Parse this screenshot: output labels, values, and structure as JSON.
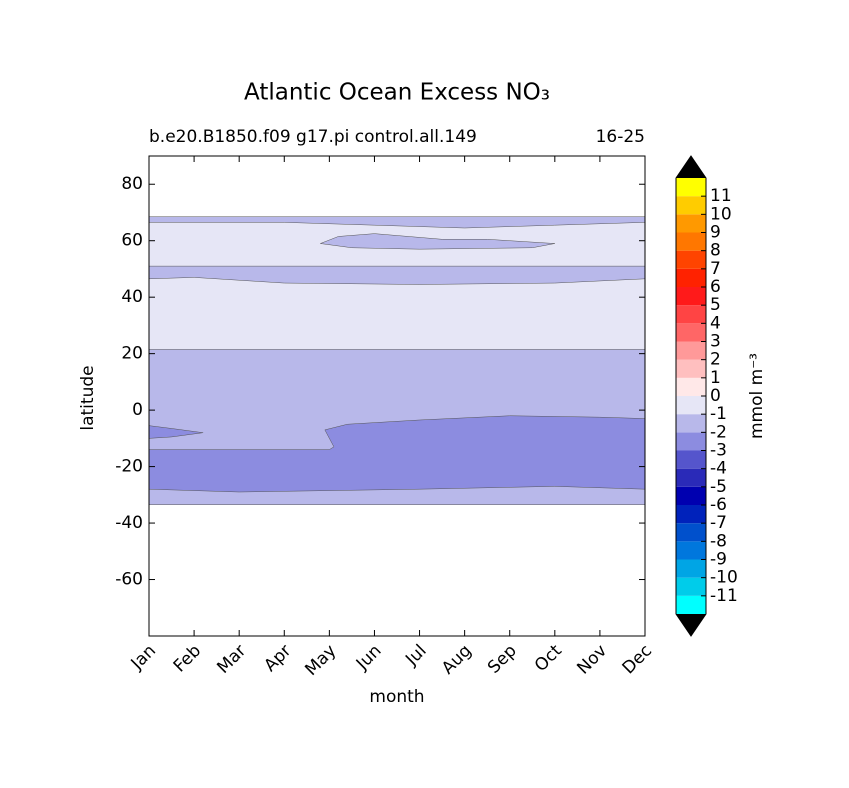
{
  "chart_data": {
    "type": "contour",
    "title": "Atlantic Ocean Excess NO₃",
    "subtitle_left": "b.e20.B1850.f09 g17.pi control.all.149",
    "subtitle_right": "16-25",
    "xlabel": "month",
    "ylabel": "latitude",
    "xlim": [
      0,
      11
    ],
    "xticks": [
      {
        "value": 0,
        "label": "Jan"
      },
      {
        "value": 1,
        "label": "Feb"
      },
      {
        "value": 2,
        "label": "Mar"
      },
      {
        "value": 3,
        "label": "Apr"
      },
      {
        "value": 4,
        "label": "May"
      },
      {
        "value": 5,
        "label": "Jun"
      },
      {
        "value": 6,
        "label": "Jul"
      },
      {
        "value": 7,
        "label": "Aug"
      },
      {
        "value": 8,
        "label": "Sep"
      },
      {
        "value": 9,
        "label": "Oct"
      },
      {
        "value": 10,
        "label": "Nov"
      },
      {
        "value": 11,
        "label": "Dec"
      }
    ],
    "ylim": [
      -80,
      90
    ],
    "yticks": [
      -60,
      -40,
      -20,
      0,
      20,
      40,
      60,
      80
    ],
    "regions": [
      {
        "value": -2,
        "x": [
          0,
          11,
          11,
          0
        ],
        "y": [
          -33.5,
          -33.5,
          68.5,
          68.5
        ]
      },
      {
        "value": -1,
        "x": [
          0,
          3,
          5,
          7,
          9,
          11,
          11,
          0
        ],
        "y": [
          66.5,
          66.5,
          65.5,
          64.5,
          65.5,
          66.5,
          51,
          51
        ]
      },
      {
        "value": -2,
        "x": [
          3.8,
          4.2,
          5,
          6.5,
          7.5,
          9,
          8.5,
          6,
          4.5
        ],
        "y": [
          59,
          61.5,
          62.5,
          60.5,
          60.5,
          59,
          57.5,
          57,
          57.5
        ]
      },
      {
        "value": -1,
        "x": [
          0,
          1,
          3,
          6,
          9,
          11,
          11,
          0
        ],
        "y": [
          46.5,
          47,
          45,
          44.5,
          45,
          46.5,
          21.5,
          21.5
        ]
      },
      {
        "value": -3,
        "x": [
          0,
          4,
          4.1,
          3.9,
          4.4,
          6,
          8,
          10,
          11,
          11,
          9,
          6,
          2,
          0
        ],
        "y": [
          -14,
          -14,
          -13,
          -7,
          -5,
          -3.5,
          -2,
          -2.5,
          -3,
          -28,
          -27,
          -28,
          -29,
          -28
        ]
      },
      {
        "value": -3,
        "x": [
          0,
          0.5,
          1.2,
          0.5,
          0
        ],
        "y": [
          -5.5,
          -6.5,
          -8,
          -9.5,
          -10
        ]
      }
    ],
    "colorbar": {
      "label": "mmol m⁻³",
      "bounds": [
        -12,
        -11,
        -10,
        -9,
        -8,
        -7,
        -6,
        -5,
        -4,
        -3,
        -2,
        -1,
        0,
        1,
        2,
        3,
        4,
        5,
        6,
        7,
        8,
        9,
        10,
        11,
        12
      ],
      "colors": [
        "#00ffff",
        "#00ccea",
        "#00a5e5",
        "#0077dd",
        "#0050cc",
        "#0022bb",
        "#0000b0",
        "#2a2ab8",
        "#5555cc",
        "#8c8ce0",
        "#b8b8ea",
        "#e6e6f6",
        "#ffe8e8",
        "#ffbfbf",
        "#ff9999",
        "#ff6666",
        "#ff4444",
        "#ff1a1a",
        "#ff2200",
        "#ff4400",
        "#ff7700",
        "#ff9900",
        "#ffcc00",
        "#ffff00"
      ],
      "extend_color": "#000000",
      "ticks": [
        -11,
        -10,
        -9,
        -8,
        -7,
        -6,
        -5,
        -4,
        -3,
        -2,
        -1,
        0,
        1,
        2,
        3,
        4,
        5,
        6,
        7,
        8,
        9,
        10,
        11
      ]
    }
  }
}
